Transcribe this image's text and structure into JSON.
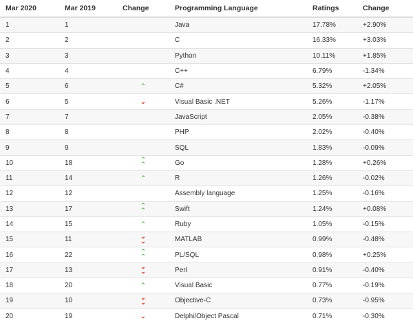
{
  "headers": [
    "Mar 2020",
    "Mar 2019",
    "Change",
    "Programming Language",
    "Ratings",
    "Change"
  ],
  "colors": {
    "up": "#5cb85c",
    "down": "#d9381e"
  },
  "rows": [
    {
      "now": "1",
      "prev": "1",
      "trend": "none",
      "lang": "Java",
      "rating": "17.78%",
      "change": "+2.90%"
    },
    {
      "now": "2",
      "prev": "2",
      "trend": "none",
      "lang": "C",
      "rating": "16.33%",
      "change": "+3.03%"
    },
    {
      "now": "3",
      "prev": "3",
      "trend": "none",
      "lang": "Python",
      "rating": "10.11%",
      "change": "+1.85%"
    },
    {
      "now": "4",
      "prev": "4",
      "trend": "none",
      "lang": "C++",
      "rating": "6.79%",
      "change": "-1.34%"
    },
    {
      "now": "5",
      "prev": "6",
      "trend": "up",
      "lang": "C#",
      "rating": "5.32%",
      "change": "+2.05%"
    },
    {
      "now": "6",
      "prev": "5",
      "trend": "down",
      "lang": "Visual Basic .NET",
      "rating": "5.26%",
      "change": "-1.17%"
    },
    {
      "now": "7",
      "prev": "7",
      "trend": "none",
      "lang": "JavaScript",
      "rating": "2.05%",
      "change": "-0.38%"
    },
    {
      "now": "8",
      "prev": "8",
      "trend": "none",
      "lang": "PHP",
      "rating": "2.02%",
      "change": "-0.40%"
    },
    {
      "now": "9",
      "prev": "9",
      "trend": "none",
      "lang": "SQL",
      "rating": "1.83%",
      "change": "-0.09%"
    },
    {
      "now": "10",
      "prev": "18",
      "trend": "double-up",
      "lang": "Go",
      "rating": "1.28%",
      "change": "+0.26%"
    },
    {
      "now": "11",
      "prev": "14",
      "trend": "up",
      "lang": "R",
      "rating": "1.26%",
      "change": "-0.02%"
    },
    {
      "now": "12",
      "prev": "12",
      "trend": "none",
      "lang": "Assembly language",
      "rating": "1.25%",
      "change": "-0.16%"
    },
    {
      "now": "13",
      "prev": "17",
      "trend": "double-up",
      "lang": "Swift",
      "rating": "1.24%",
      "change": "+0.08%"
    },
    {
      "now": "14",
      "prev": "15",
      "trend": "up",
      "lang": "Ruby",
      "rating": "1.05%",
      "change": "-0.15%"
    },
    {
      "now": "15",
      "prev": "11",
      "trend": "double-down",
      "lang": "MATLAB",
      "rating": "0.99%",
      "change": "-0.48%"
    },
    {
      "now": "16",
      "prev": "22",
      "trend": "double-up",
      "lang": "PL/SQL",
      "rating": "0.98%",
      "change": "+0.25%"
    },
    {
      "now": "17",
      "prev": "13",
      "trend": "double-down",
      "lang": "Perl",
      "rating": "0.91%",
      "change": "-0.40%"
    },
    {
      "now": "18",
      "prev": "20",
      "trend": "up",
      "lang": "Visual Basic",
      "rating": "0.77%",
      "change": "-0.19%"
    },
    {
      "now": "19",
      "prev": "10",
      "trend": "double-down",
      "lang": "Objective-C",
      "rating": "0.73%",
      "change": "-0.95%"
    },
    {
      "now": "20",
      "prev": "19",
      "trend": "down",
      "lang": "Delphi/Object Pascal",
      "rating": "0.71%",
      "change": "-0.30%"
    }
  ]
}
